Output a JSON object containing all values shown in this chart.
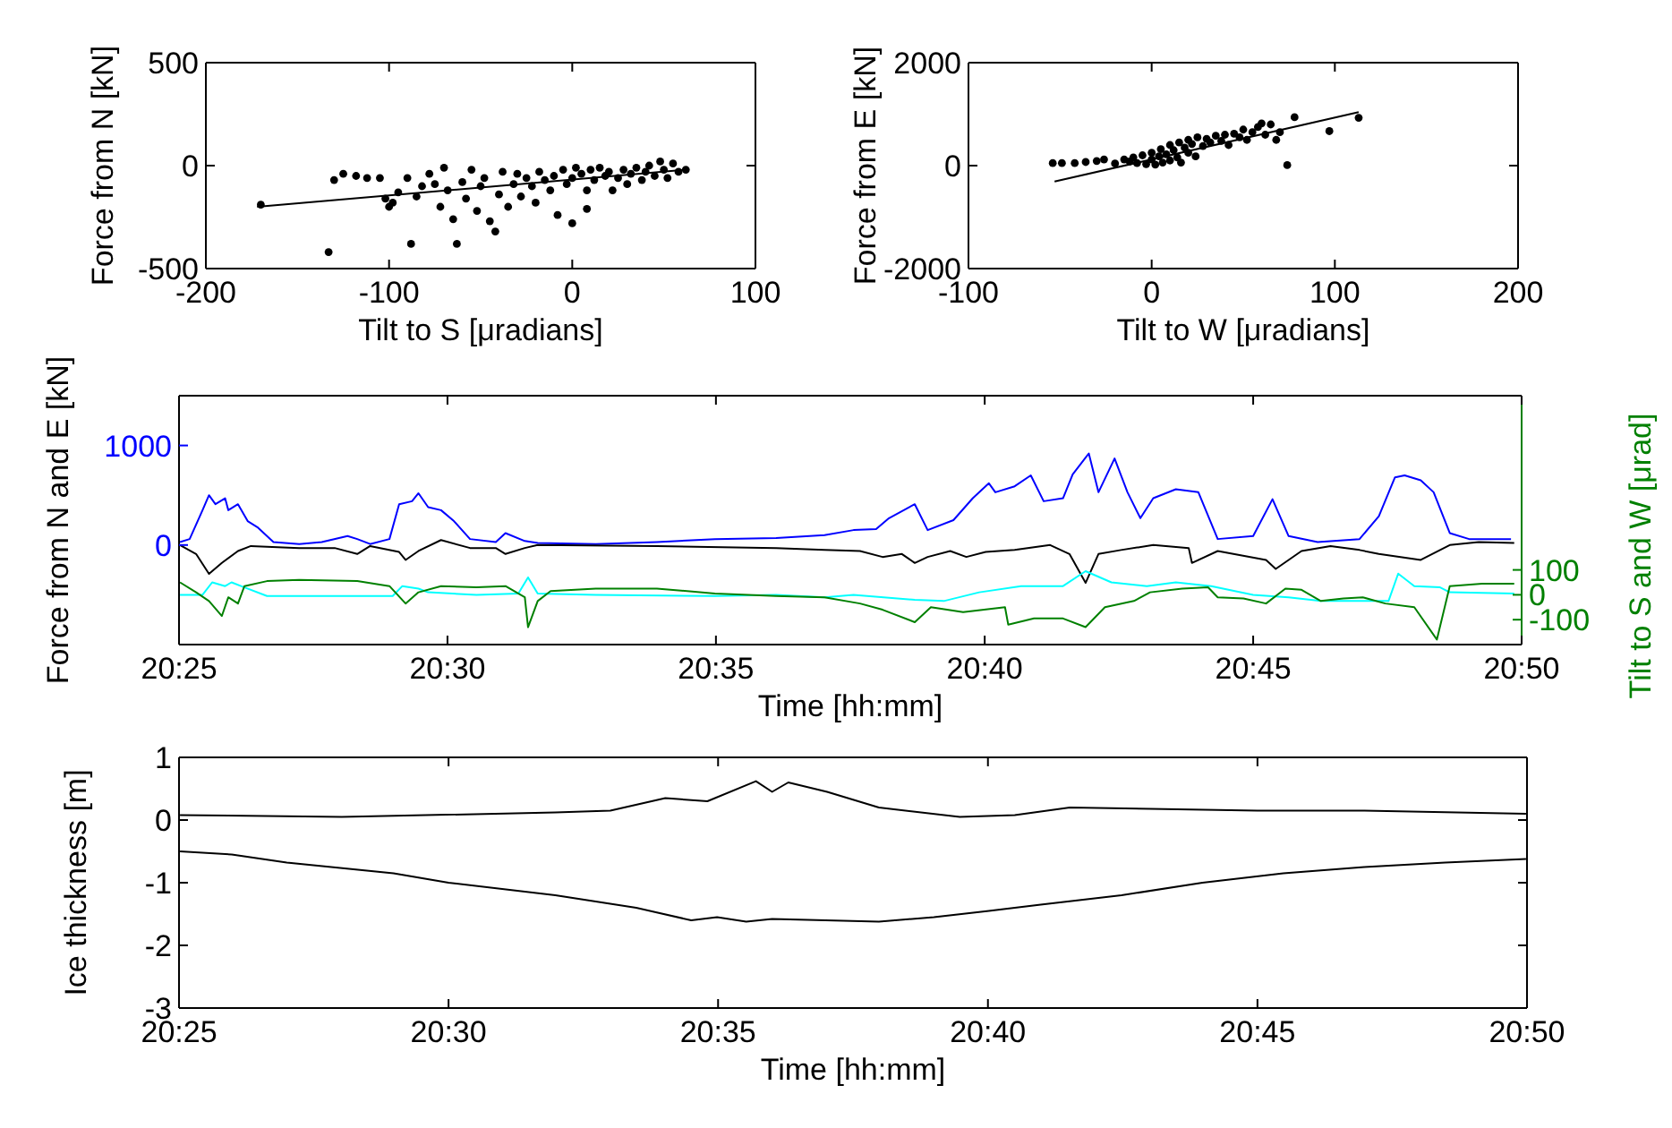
{
  "chart_data": [
    {
      "type": "scatter",
      "xlabel": "Tilt to S [μradians]",
      "ylabel": "Force from N [kN]",
      "xlim": [
        -200,
        100
      ],
      "xticks": [
        -200,
        -100,
        0,
        100
      ],
      "ylim": [
        -500,
        500
      ],
      "yticks": [
        -500,
        0,
        500
      ],
      "grid": false,
      "series": [
        {
          "marker": "circle",
          "color": "#000000",
          "x": [
            -170,
            -133,
            -130,
            -125,
            -118,
            -112,
            -105,
            -102,
            -100,
            -98,
            -95,
            -90,
            -88,
            -85,
            -82,
            -78,
            -75,
            -72,
            -70,
            -68,
            -65,
            -63,
            -60,
            -58,
            -55,
            -52,
            -50,
            -48,
            -45,
            -42,
            -40,
            -38,
            -35,
            -32,
            -30,
            -28,
            -25,
            -22,
            -20,
            -18,
            -15,
            -12,
            -10,
            -8,
            -5,
            -3,
            0,
            0,
            2,
            5,
            8,
            8,
            10,
            12,
            15,
            18,
            20,
            22,
            25,
            28,
            30,
            32,
            35,
            38,
            40,
            42,
            45,
            48,
            50,
            52,
            55,
            58,
            62
          ],
          "values": [
            -190,
            -420,
            -70,
            -40,
            -50,
            -60,
            -60,
            -160,
            -200,
            -180,
            -130,
            -60,
            -380,
            -150,
            -100,
            -40,
            -90,
            -200,
            -10,
            -120,
            -260,
            -380,
            -80,
            -160,
            -20,
            -220,
            -100,
            -60,
            -270,
            -320,
            -140,
            -30,
            -200,
            -90,
            -40,
            -150,
            -60,
            -100,
            -180,
            -30,
            -70,
            -120,
            -50,
            -240,
            -20,
            -90,
            -280,
            -60,
            -10,
            -40,
            -120,
            -210,
            -20,
            -70,
            -10,
            -50,
            -30,
            -120,
            -60,
            -20,
            -90,
            -40,
            -10,
            -70,
            -30,
            0,
            -50,
            20,
            -20,
            -60,
            10,
            -30,
            -20
          ]
        },
        {
          "type": "line",
          "color": "#000000",
          "x": [
            -172,
            62
          ],
          "values": [
            -200,
            -20
          ]
        }
      ]
    },
    {
      "type": "scatter",
      "xlabel": "Tilt to W [μradians]",
      "ylabel": "Force from E [kN]",
      "xlim": [
        -100,
        200
      ],
      "xticks": [
        -100,
        0,
        100,
        200
      ],
      "ylim": [
        -2000,
        2000
      ],
      "yticks": [
        -2000,
        0,
        2000
      ],
      "grid": false,
      "series": [
        {
          "marker": "circle",
          "color": "#000000",
          "x": [
            -54,
            -49,
            -42,
            -36,
            -30,
            -26,
            -20,
            -15,
            -12,
            -10,
            -8,
            -5,
            -3,
            0,
            0,
            2,
            4,
            5,
            6,
            8,
            10,
            10,
            12,
            14,
            15,
            16,
            18,
            20,
            20,
            22,
            24,
            25,
            28,
            30,
            32,
            35,
            38,
            40,
            42,
            45,
            48,
            50,
            52,
            55,
            58,
            60,
            62,
            65,
            68,
            70,
            74,
            78,
            97,
            113
          ],
          "values": [
            50,
            50,
            50,
            70,
            90,
            120,
            40,
            120,
            80,
            160,
            50,
            200,
            30,
            120,
            250,
            20,
            180,
            320,
            60,
            220,
            100,
            400,
            300,
            160,
            450,
            60,
            350,
            250,
            500,
            420,
            180,
            550,
            380,
            520,
            450,
            580,
            480,
            600,
            400,
            620,
            550,
            700,
            500,
            650,
            750,
            820,
            600,
            800,
            500,
            650,
            10,
            940,
            670,
            930
          ]
        },
        {
          "type": "line",
          "color": "#000000",
          "x": [
            -53,
            113
          ],
          "values": [
            -310,
            1040
          ]
        }
      ]
    },
    {
      "type": "line",
      "xlabel": "Time [hh:mm]",
      "ylabel": "Force from N and  E [kN]",
      "y2label": "Tilt to S and  W [μrad]",
      "xlim": [
        20.4167,
        20.8333
      ],
      "xticks": [
        {
          "value": 20.4167,
          "label": "20:25"
        },
        {
          "value": 20.5,
          "label": "20:30"
        },
        {
          "value": 20.5833,
          "label": "20:35"
        },
        {
          "value": 20.6667,
          "label": "20:40"
        },
        {
          "value": 20.75,
          "label": "20:45"
        },
        {
          "value": 20.8333,
          "label": "20:50"
        }
      ],
      "ylim": [
        -1000,
        1500
      ],
      "yticks": [
        0,
        1000
      ],
      "y2lim": [
        -200,
        800
      ],
      "y2ticks": [
        -100,
        0,
        100
      ],
      "grid": false,
      "series": [
        {
          "color": "#0000ff",
          "x": [
            20.417,
            20.42,
            20.424,
            20.426,
            20.428,
            20.431,
            20.432,
            20.435,
            20.438,
            20.441,
            20.446,
            20.454,
            20.461,
            20.469,
            20.472,
            20.476,
            20.482,
            20.485,
            20.489,
            20.491,
            20.494,
            20.498,
            20.502,
            20.507,
            20.515,
            20.518,
            20.524,
            20.528,
            20.546,
            20.565,
            20.583,
            20.602,
            20.617,
            20.626,
            20.633,
            20.637,
            20.645,
            20.649,
            20.657,
            20.663,
            20.668,
            20.67,
            20.676,
            20.681,
            20.685,
            20.691,
            20.694,
            20.699,
            20.702,
            20.707,
            20.711,
            20.715,
            20.719,
            20.726,
            20.733,
            20.739,
            20.75,
            20.756,
            20.761,
            20.77,
            20.783,
            20.789,
            20.794,
            20.797,
            20.802,
            20.806,
            20.811,
            20.817,
            20.83
          ],
          "values": [
            30,
            60,
            350,
            500,
            410,
            470,
            350,
            410,
            240,
            180,
            30,
            10,
            30,
            90,
            60,
            10,
            60,
            410,
            440,
            520,
            380,
            350,
            240,
            60,
            30,
            120,
            40,
            20,
            10,
            30,
            60,
            70,
            100,
            150,
            160,
            270,
            410,
            150,
            250,
            470,
            620,
            530,
            590,
            700,
            440,
            470,
            710,
            920,
            530,
            870,
            530,
            270,
            470,
            560,
            530,
            60,
            90,
            460,
            90,
            30,
            60,
            290,
            680,
            700,
            650,
            530,
            120,
            60,
            60
          ]
        },
        {
          "color": "#000000",
          "x": [
            20.417,
            20.422,
            20.426,
            20.43,
            20.435,
            20.439,
            20.454,
            20.465,
            20.472,
            20.476,
            20.485,
            20.487,
            20.491,
            20.498,
            20.507,
            20.515,
            20.518,
            20.524,
            20.528,
            20.565,
            20.602,
            20.617,
            20.628,
            20.635,
            20.641,
            20.645,
            20.649,
            20.656,
            20.661,
            20.667,
            20.676,
            20.687,
            20.693,
            20.698,
            20.702,
            20.709,
            20.719,
            20.73,
            20.731,
            20.739,
            20.754,
            20.757,
            20.765,
            20.774,
            20.783,
            20.789,
            20.802,
            20.811,
            20.82,
            20.831
          ],
          "values": [
            0,
            -90,
            -290,
            -180,
            -60,
            -10,
            -30,
            -30,
            -90,
            -10,
            -70,
            -150,
            -60,
            50,
            -30,
            -30,
            -90,
            -30,
            0,
            -10,
            -30,
            -50,
            -60,
            -120,
            -90,
            -180,
            -120,
            -60,
            -120,
            -70,
            -50,
            0,
            -90,
            -380,
            -90,
            -50,
            0,
            -30,
            -180,
            -60,
            -150,
            -240,
            -60,
            -10,
            -50,
            -90,
            -150,
            0,
            30,
            20
          ]
        },
        {
          "color": "#00ffff",
          "axis": "y2",
          "x": [
            20.417,
            20.424,
            20.427,
            20.431,
            20.433,
            20.437,
            20.444,
            20.472,
            20.483,
            20.486,
            20.491,
            20.494,
            20.509,
            20.522,
            20.525,
            20.528,
            20.546,
            20.583,
            20.602,
            20.617,
            20.626,
            20.645,
            20.654,
            20.665,
            20.678,
            20.691,
            20.698,
            20.706,
            20.717,
            20.726,
            20.737,
            20.75,
            20.761,
            20.771,
            20.784,
            20.792,
            20.795,
            20.8,
            20.808,
            20.811,
            20.831
          ],
          "values": [
            0,
            0,
            50,
            35,
            50,
            30,
            -5,
            -5,
            -5,
            35,
            25,
            10,
            0,
            5,
            70,
            5,
            0,
            -5,
            0,
            -10,
            0,
            -20,
            -25,
            10,
            35,
            35,
            95,
            50,
            35,
            50,
            35,
            0,
            -10,
            -25,
            -25,
            -25,
            85,
            35,
            30,
            10,
            5
          ]
        },
        {
          "color": "#008000",
          "axis": "y2",
          "x": [
            20.417,
            20.422,
            20.426,
            20.43,
            20.432,
            20.435,
            20.437,
            20.444,
            20.454,
            20.472,
            20.482,
            20.487,
            20.491,
            20.498,
            20.509,
            20.518,
            20.524,
            20.525,
            20.528,
            20.532,
            20.546,
            20.565,
            20.583,
            20.602,
            20.617,
            20.628,
            20.635,
            20.645,
            20.65,
            20.66,
            20.673,
            20.674,
            20.682,
            20.691,
            20.698,
            20.704,
            20.713,
            20.718,
            20.728,
            20.736,
            20.739,
            20.747,
            20.754,
            20.76,
            20.765,
            20.771,
            20.778,
            20.784,
            20.791,
            20.8,
            20.807,
            20.811,
            20.821,
            20.831
          ],
          "values": [
            50,
            10,
            -25,
            -85,
            -10,
            -35,
            35,
            55,
            60,
            55,
            35,
            -35,
            10,
            35,
            30,
            35,
            -10,
            -130,
            -25,
            15,
            25,
            25,
            5,
            -5,
            -10,
            -35,
            -60,
            -110,
            -50,
            -70,
            -50,
            -120,
            -95,
            -95,
            -130,
            -50,
            -25,
            10,
            25,
            30,
            -10,
            -15,
            -35,
            25,
            20,
            -25,
            -15,
            -10,
            -35,
            -50,
            -180,
            35,
            45,
            45
          ]
        }
      ]
    },
    {
      "type": "line",
      "xlabel": "Time [hh:mm]",
      "ylabel": "Ice thickness [m]",
      "xlim": [
        20.4167,
        20.8333
      ],
      "xticks": [
        {
          "value": 20.4167,
          "label": "20:25"
        },
        {
          "value": 20.5,
          "label": "20:30"
        },
        {
          "value": 20.5833,
          "label": "20:35"
        },
        {
          "value": 20.6667,
          "label": "20:40"
        },
        {
          "value": 20.75,
          "label": "20:45"
        },
        {
          "value": 20.8333,
          "label": "20:50"
        }
      ],
      "ylim": [
        -3,
        1
      ],
      "yticks": [
        -3,
        -2,
        -1,
        0,
        1
      ],
      "grid": false,
      "series": [
        {
          "color": "#000000",
          "x": [
            20.417,
            20.467,
            20.533,
            20.55,
            20.567,
            20.58,
            20.595,
            20.6,
            20.605,
            20.617,
            20.633,
            20.658,
            20.675,
            20.692,
            20.717,
            20.75,
            20.783,
            20.833
          ],
          "values": [
            0.08,
            0.05,
            0.12,
            0.15,
            0.35,
            0.3,
            0.62,
            0.45,
            0.6,
            0.45,
            0.2,
            0.05,
            0.08,
            0.2,
            0.18,
            0.15,
            0.15,
            0.1
          ]
        },
        {
          "color": "#000000",
          "x": [
            20.417,
            20.433,
            20.45,
            20.483,
            20.5,
            20.533,
            20.558,
            20.575,
            20.583,
            20.592,
            20.6,
            20.633,
            20.65,
            20.667,
            20.683,
            20.708,
            20.733,
            20.758,
            20.783,
            20.808,
            20.833
          ],
          "values": [
            -0.5,
            -0.55,
            -0.68,
            -0.85,
            -1.0,
            -1.2,
            -1.4,
            -1.6,
            -1.55,
            -1.62,
            -1.58,
            -1.62,
            -1.55,
            -1.45,
            -1.35,
            -1.2,
            -1.0,
            -0.85,
            -0.75,
            -0.68,
            -0.62
          ]
        }
      ]
    }
  ]
}
